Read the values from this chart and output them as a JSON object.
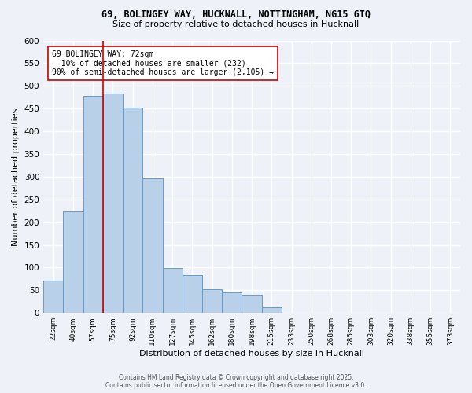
{
  "title1": "69, BOLINGEY WAY, HUCKNALL, NOTTINGHAM, NG15 6TQ",
  "title2": "Size of property relative to detached houses in Hucknall",
  "xlabel": "Distribution of detached houses by size in Hucknall",
  "ylabel": "Number of detached properties",
  "bar_color": "#b8d0e8",
  "bar_edge_color": "#6699cc",
  "bin_labels": [
    "22sqm",
    "40sqm",
    "57sqm",
    "75sqm",
    "92sqm",
    "110sqm",
    "127sqm",
    "145sqm",
    "162sqm",
    "180sqm",
    "198sqm",
    "215sqm",
    "233sqm",
    "250sqm",
    "268sqm",
    "285sqm",
    "303sqm",
    "320sqm",
    "338sqm",
    "355sqm",
    "373sqm"
  ],
  "bar_heights": [
    72,
    224,
    478,
    484,
    452,
    297,
    99,
    84,
    53,
    46,
    40,
    12,
    0,
    0,
    0,
    0,
    0,
    0,
    0,
    0,
    0
  ],
  "vline_color": "#cc0000",
  "annotation_text": "69 BOLINGEY WAY: 72sqm\n← 10% of detached houses are smaller (232)\n90% of semi-detached houses are larger (2,105) →",
  "annotation_box_color": "#ffffff",
  "annotation_box_edge": "#cc0000",
  "ylim": [
    0,
    600
  ],
  "yticks": [
    0,
    50,
    100,
    150,
    200,
    250,
    300,
    350,
    400,
    450,
    500,
    550,
    600
  ],
  "footer1": "Contains HM Land Registry data © Crown copyright and database right 2025.",
  "footer2": "Contains public sector information licensed under the Open Government Licence v3.0.",
  "bg_color": "#eef2f8",
  "grid_color": "#ffffff"
}
